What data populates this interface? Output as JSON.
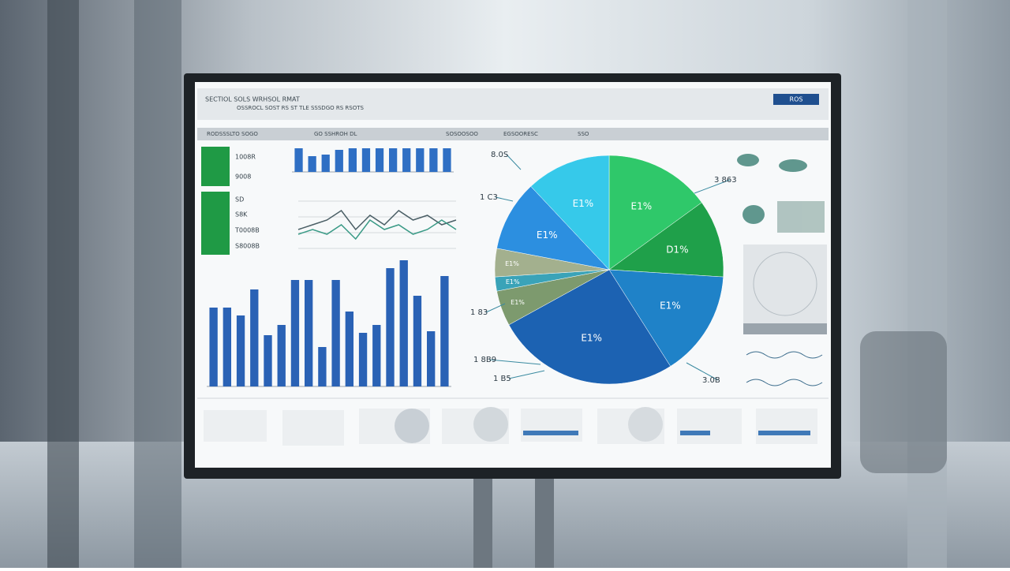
{
  "screen": {
    "header_title": "SECTIOL SOLS WRHSOL RMAT",
    "header_subtitle": "OSSROCL SOST RS ST TLE SSSDGO RS RSOTS",
    "badge": "ROS",
    "tabs": [
      "RODSSSLTO SOGO",
      "GO SSHROH DL",
      "SOSOOSOO",
      "EGSOORESC",
      "SSO"
    ],
    "kpis": [
      "1008R",
      "9008",
      "SD",
      "S8K",
      "T0008B",
      "S8008B"
    ]
  },
  "chart_data": [
    {
      "type": "bar",
      "values": [
        30,
        20,
        22,
        28,
        30,
        30,
        30,
        30,
        30,
        30,
        30,
        30
      ],
      "color": "#2f6fc4",
      "ylim": [
        0,
        30
      ]
    },
    {
      "type": "line",
      "ylim": [
        0,
        10
      ],
      "series": [
        {
          "color": "#4b5f66",
          "values": [
            4,
            5,
            6,
            8,
            4,
            7,
            5,
            8,
            6,
            7,
            5,
            6
          ]
        },
        {
          "color": "#3a9a86",
          "values": [
            3,
            4,
            3,
            5,
            2,
            6,
            4,
            5,
            3,
            4,
            6,
            4
          ]
        }
      ]
    },
    {
      "type": "bar",
      "values": [
        100,
        100,
        90,
        123,
        65,
        78,
        135,
        135,
        50,
        135,
        95,
        68,
        78,
        150,
        160,
        115,
        70,
        140
      ],
      "color": "#2a62b5",
      "ylim": [
        0,
        160
      ]
    },
    {
      "type": "pie",
      "values": [
        15,
        11,
        15,
        26,
        5,
        2,
        4,
        10,
        12
      ],
      "colors": [
        "#2fc86a",
        "#1fa04a",
        "#1f82c8",
        "#1c62b2",
        "#7d9a6e",
        "#3aa3b8",
        "#a3b08e",
        "#2c8fe0",
        "#36c9ea"
      ],
      "labels": [
        "E1%",
        "D1%",
        "E1%",
        "E1%",
        "E1%",
        "E1%",
        "E1%",
        "E1%",
        "E1%"
      ],
      "callouts": [
        "8.0S",
        "1 C3",
        "1 83",
        "1 8B9",
        "1 B5",
        "3 863",
        "3.0B"
      ]
    }
  ]
}
